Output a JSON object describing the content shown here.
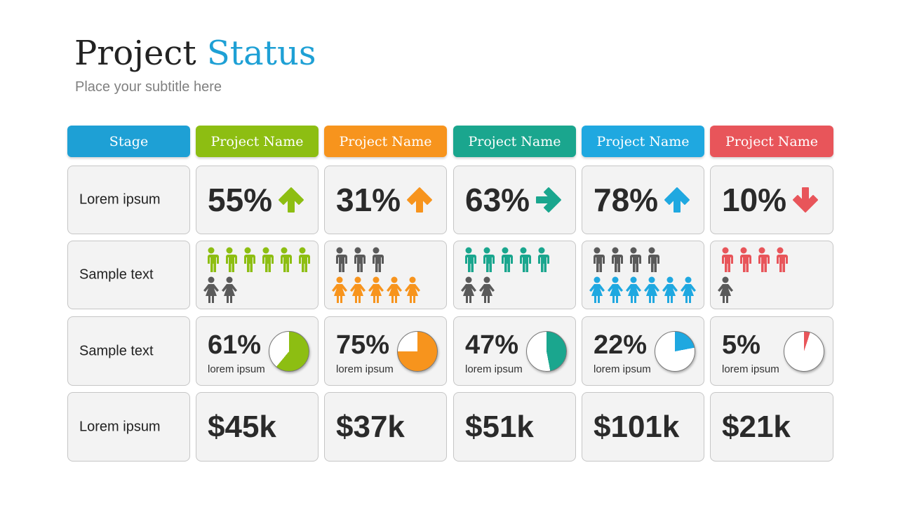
{
  "title": {
    "main": "Project",
    "accent": "Status"
  },
  "subtitle": "Place your subtitle here",
  "colors": {
    "blue": "#1ea0d5",
    "green": "#8dbe12",
    "orange": "#f7941d",
    "teal": "#1aa68e",
    "sky": "#1fa8e0",
    "red": "#e8555a",
    "gray": "#5a5a5a"
  },
  "headers": [
    "Stage",
    "Project Name",
    "Project Name",
    "Project Name",
    "Project Name",
    "Project Name"
  ],
  "header_colors": [
    "#1ea0d5",
    "#8dbe12",
    "#f7941d",
    "#1aa68e",
    "#1fa8e0",
    "#e8555a"
  ],
  "row_labels": [
    "Lorem ipsum",
    "Sample text",
    "Sample text",
    "Lorem ipsum"
  ],
  "projects": [
    {
      "trend_value": "55%",
      "trend": "up",
      "color": "#8dbe12",
      "men": 6,
      "men_color": "#8dbe12",
      "women": 2,
      "women_color": "#5a5a5a",
      "progress_label": "61%",
      "progress": 61,
      "progress_caption": "lorem ipsum",
      "budget": "$45k"
    },
    {
      "trend_value": "31%",
      "trend": "up",
      "color": "#f7941d",
      "men": 3,
      "men_color": "#5a5a5a",
      "women": 5,
      "women_color": "#f7941d",
      "progress_label": "75%",
      "progress": 75,
      "progress_caption": "lorem ipsum",
      "budget": "$37k"
    },
    {
      "trend_value": "63%",
      "trend": "right",
      "color": "#1aa68e",
      "men": 5,
      "men_color": "#1aa68e",
      "women": 2,
      "women_color": "#5a5a5a",
      "progress_label": "47%",
      "progress": 47,
      "progress_caption": "lorem ipsum",
      "budget": "$51k"
    },
    {
      "trend_value": "78%",
      "trend": "up",
      "color": "#1fa8e0",
      "men": 4,
      "men_color": "#5a5a5a",
      "women": 6,
      "women_color": "#1fa8e0",
      "progress_label": "22%",
      "progress": 22,
      "progress_caption": "lorem ipsum",
      "budget": "$101k"
    },
    {
      "trend_value": "10%",
      "trend": "down",
      "color": "#e8555a",
      "men": 4,
      "men_color": "#e8555a",
      "women": 1,
      "women_color": "#5a5a5a",
      "progress_label": "5%",
      "progress": 5,
      "progress_caption": "lorem ipsum",
      "budget": "$21k"
    }
  ]
}
